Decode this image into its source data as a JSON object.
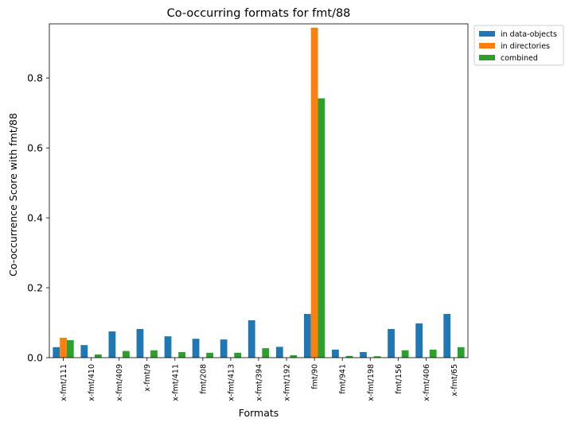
{
  "chart_data": {
    "type": "bar",
    "title": "Co-occurring formats for fmt/88",
    "xlabel": "Formats",
    "ylabel": "Co-occurrence Score with fmt/88",
    "ylim": [
      0,
      0.955
    ],
    "yticks": [
      "0.0",
      "0.2",
      "0.4",
      "0.6",
      "0.8"
    ],
    "ytick_values": [
      0,
      0.2,
      0.4,
      0.6,
      0.8
    ],
    "categories": [
      "x-fmt/111",
      "x-fmt/410",
      "x-fmt/409",
      "x-fmt/9",
      "x-fmt/411",
      "fmt/208",
      "x-fmt/413",
      "x-fmt/394",
      "x-fmt/192",
      "fmt/90",
      "fmt/941",
      "x-fmt/198",
      "fmt/156",
      "x-fmt/406",
      "x-fmt/65"
    ],
    "grid": false,
    "legend_position": "outside-top-right",
    "series": [
      {
        "name": "in data-objects",
        "color": "#1f77b4",
        "values": [
          0.03,
          0.036,
          0.075,
          0.082,
          0.061,
          0.054,
          0.052,
          0.107,
          0.031,
          0.125,
          0.023,
          0.016,
          0.082,
          0.098,
          0.125
        ]
      },
      {
        "name": "in directories",
        "color": "#ff7f0e",
        "values": [
          0.057,
          0,
          0,
          0,
          0,
          0,
          0,
          0,
          0,
          0.944,
          0,
          0,
          0,
          0,
          0
        ]
      },
      {
        "name": "combined",
        "color": "#2ca02c",
        "values": [
          0.05,
          0.009,
          0.019,
          0.021,
          0.016,
          0.014,
          0.014,
          0.027,
          0.007,
          0.742,
          0.005,
          0.004,
          0.021,
          0.023,
          0.03
        ]
      }
    ]
  }
}
